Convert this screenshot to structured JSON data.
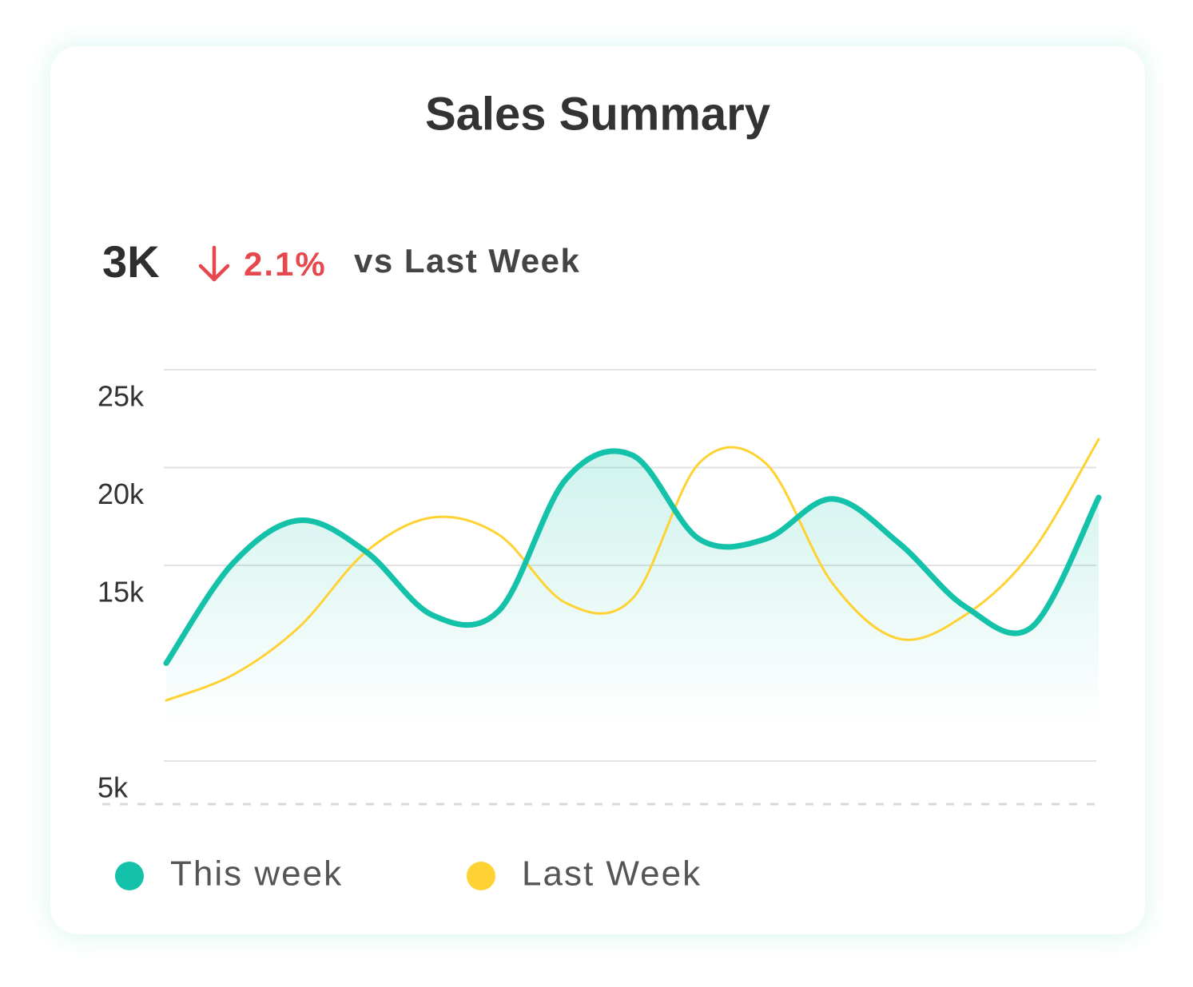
{
  "chart_data": {
    "type": "line",
    "title": "Sales Summary",
    "summary": {
      "value": "3K",
      "change": "2.1%",
      "comparison": "vs Last Week"
    },
    "categories": [
      null,
      null,
      null,
      null,
      null,
      null,
      null,
      null,
      null,
      null,
      null,
      null,
      null,
      null,
      null
    ],
    "series": [
      {
        "name": "This week",
        "color": "#13c2a8",
        "values": [
          10000,
          15100,
          17300,
          15700,
          12450,
          12700,
          19400,
          20630,
          16350,
          16350,
          18400,
          16140,
          12880,
          11860,
          18470
        ]
      },
      {
        "name": "Last Week",
        "color": "#ffd234",
        "values": [
          8100,
          9400,
          11860,
          15700,
          17450,
          16550,
          13080,
          13300,
          20220,
          20220,
          14100,
          11250,
          12470,
          15700,
          21450
        ]
      }
    ],
    "ylim": [
      3000,
      25000
    ],
    "yticks": [
      {
        "value": 25000,
        "label": "25k"
      },
      {
        "value": 20000,
        "label": "20k"
      },
      {
        "value": 15000,
        "label": "15k"
      },
      {
        "value": 5000,
        "label": "5k"
      }
    ],
    "grid": true,
    "legend": "bottom"
  }
}
